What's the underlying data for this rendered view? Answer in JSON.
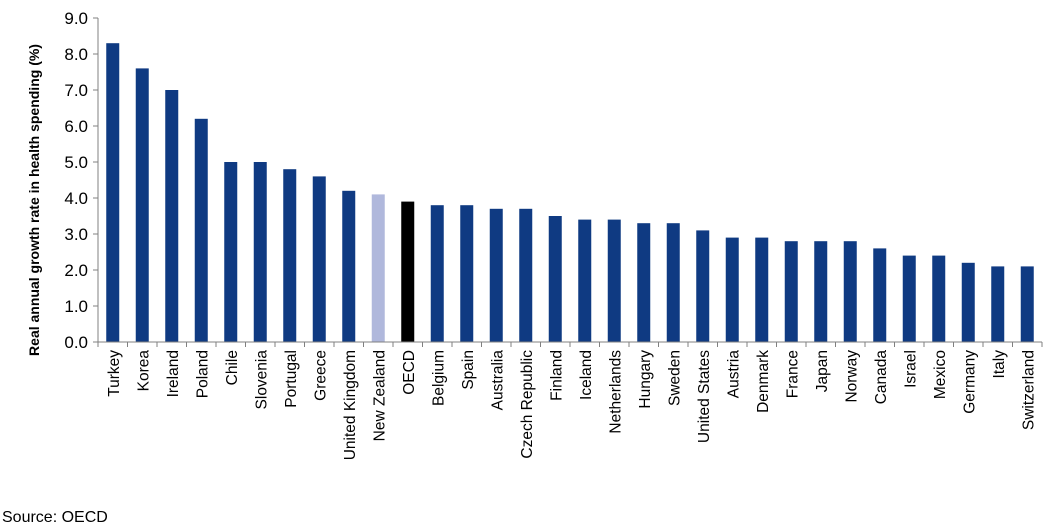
{
  "chart_data": {
    "type": "bar",
    "ylabel": "Real annual growth rate in health spending (%)",
    "ylim": [
      0,
      9
    ],
    "yticks": [
      "0.0",
      "1.0",
      "2.0",
      "3.0",
      "4.0",
      "5.0",
      "6.0",
      "7.0",
      "8.0",
      "9.0"
    ],
    "grid": false,
    "categories": [
      "Turkey",
      "Korea",
      "Ireland",
      "Poland",
      "Chile",
      "Slovenia",
      "Portugal",
      "Greece",
      "United Kingdom",
      "New Zealand",
      "OECD",
      "Belgium",
      "Spain",
      "Australia",
      "Czech Republic",
      "Finland",
      "Iceland",
      "Netherlands",
      "Hungary",
      "Sweden",
      "United States",
      "Austria",
      "Denmark",
      "France",
      "Japan",
      "Norway",
      "Canada",
      "Israel",
      "Mexico",
      "Germany",
      "Italy",
      "Switzerland"
    ],
    "values": [
      8.3,
      7.6,
      7.0,
      6.2,
      5.0,
      5.0,
      4.8,
      4.6,
      4.2,
      4.1,
      3.9,
      3.8,
      3.8,
      3.7,
      3.7,
      3.5,
      3.4,
      3.4,
      3.3,
      3.3,
      3.1,
      2.9,
      2.9,
      2.8,
      2.8,
      2.8,
      2.6,
      2.4,
      2.4,
      2.2,
      2.1,
      2.1
    ],
    "colors": {
      "default": "#0f3a82",
      "New Zealand": "#b0b8dc",
      "OECD": "#000000"
    },
    "source": "Source: OECD"
  }
}
